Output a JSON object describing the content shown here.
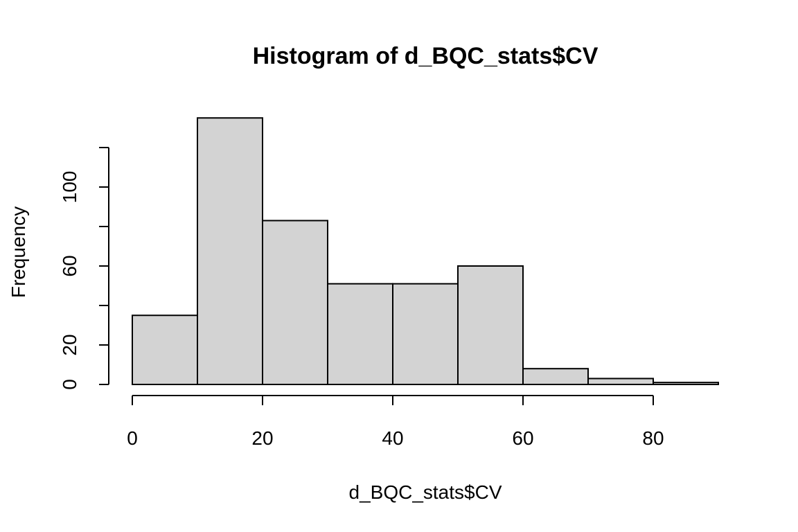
{
  "chart_data": {
    "type": "bar",
    "title": "Histogram of d_BQC_stats$CV",
    "xlabel": "d_BQC_stats$CV",
    "ylabel": "Frequency",
    "bin_edges": [
      0,
      10,
      20,
      30,
      40,
      50,
      60,
      70,
      80,
      90
    ],
    "values": [
      35,
      135,
      83,
      51,
      51,
      60,
      8,
      3,
      1
    ],
    "xlim": [
      0,
      90
    ],
    "ylim": [
      0,
      120
    ],
    "x_ticks": [
      0,
      20,
      40,
      60,
      80
    ],
    "y_ticks": [
      0,
      20,
      40,
      60,
      80,
      100,
      120
    ],
    "y_tick_labels": [
      "0",
      "20",
      "",
      "60",
      "",
      "100",
      ""
    ],
    "grid": false,
    "colors": {
      "bar_fill": "#d3d3d3",
      "bar_stroke": "#000000"
    }
  }
}
